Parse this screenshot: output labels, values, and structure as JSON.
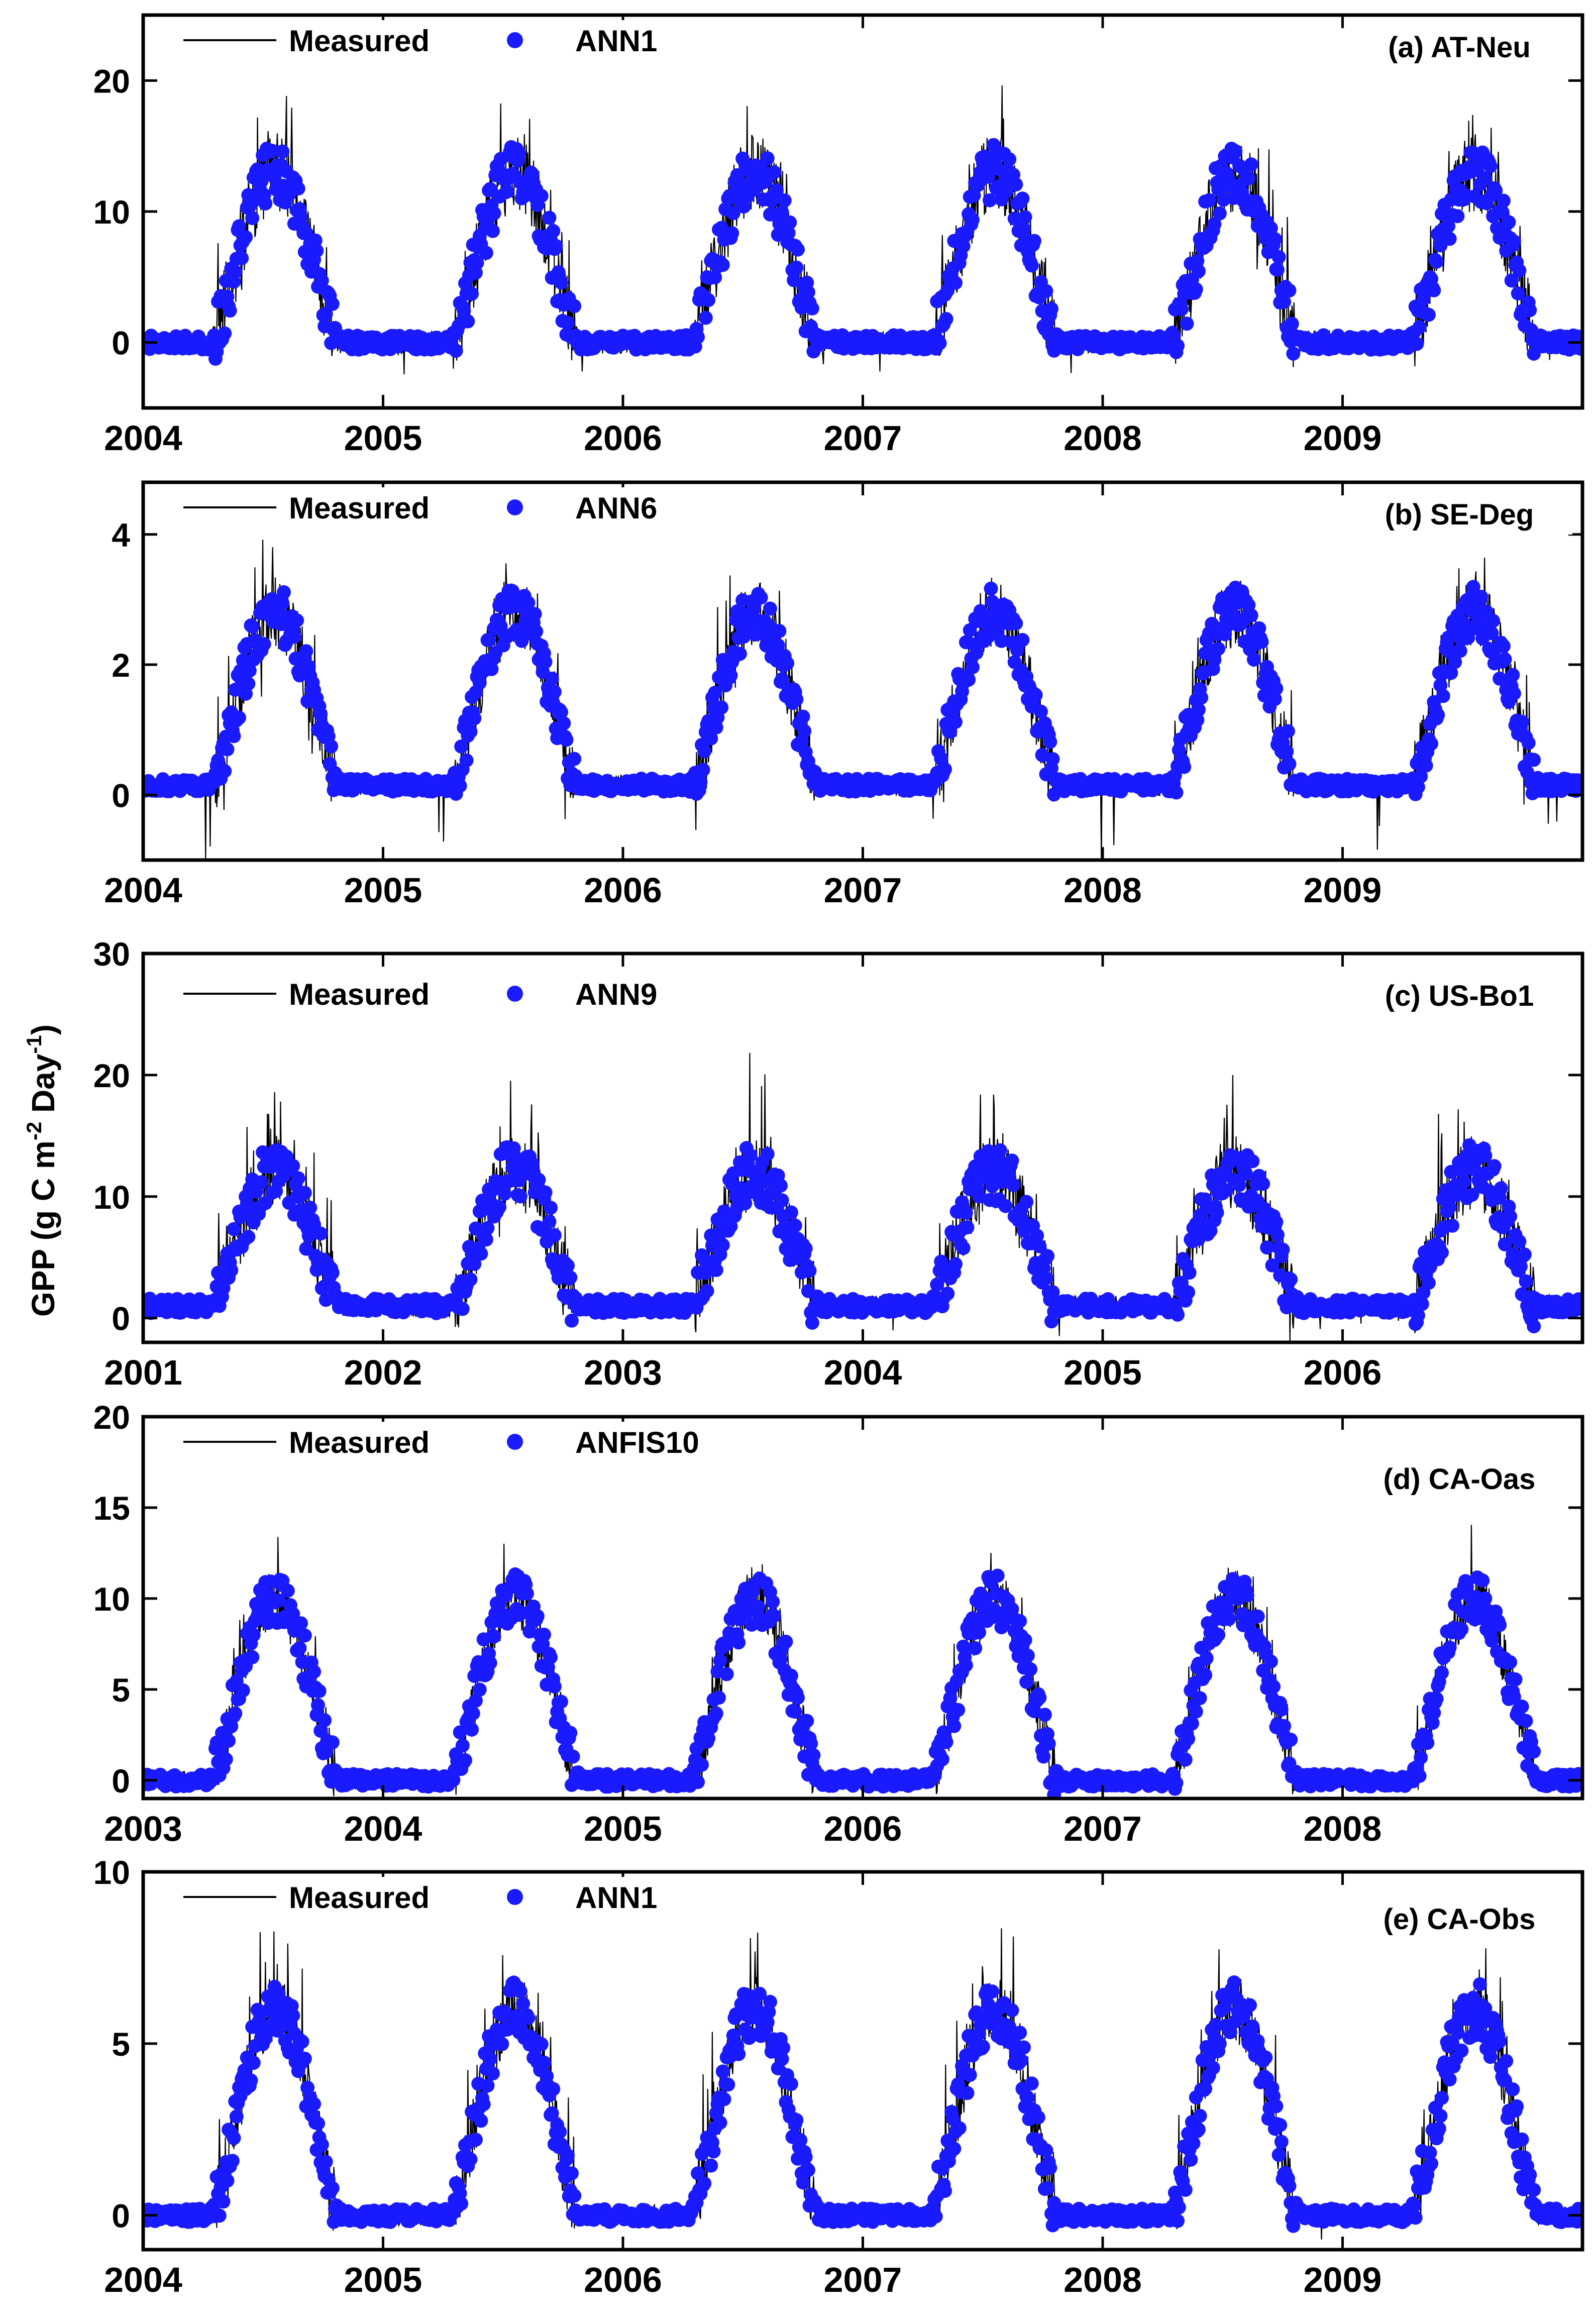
{
  "figure": {
    "ylabel": "GPP (g C m",
    "ylabel_sup1": "-2",
    "ylabel_mid": " Day",
    "ylabel_sup2": "-1",
    "ylabel_end": ")",
    "measured_color": "#000000",
    "model_color": "#1a1aff"
  },
  "chart_data": [
    {
      "type": "line",
      "panel_label": "(a) AT-Neu",
      "series": [
        {
          "name": "Measured",
          "style": "line"
        },
        {
          "name": "ANN1",
          "style": "scatter"
        }
      ],
      "xlim": [
        2004,
        2010
      ],
      "xticks": [
        "2004",
        "2005",
        "2006",
        "2007",
        "2008",
        "2009"
      ],
      "ylim": [
        -5,
        25
      ],
      "yticks": [
        0,
        10,
        20
      ],
      "seasonal": {
        "peak": 13,
        "winter": 0,
        "spike": 6,
        "model_noise": 2.2,
        "measured_noise": 3.0,
        "low": -2.5
      },
      "seed": 11
    },
    {
      "type": "line",
      "panel_label": "(b) SE-Deg",
      "series": [
        {
          "name": "Measured",
          "style": "line"
        },
        {
          "name": "ANN6",
          "style": "scatter"
        }
      ],
      "xlim": [
        2004,
        2010
      ],
      "xticks": [
        "2004",
        "2005",
        "2006",
        "2007",
        "2008",
        "2009"
      ],
      "ylim": [
        -1,
        4.8
      ],
      "yticks": [
        0,
        2,
        4
      ],
      "seasonal": {
        "peak": 2.8,
        "winter": 0.15,
        "spike": 0.9,
        "model_noise": 0.4,
        "measured_noise": 0.55,
        "low": -1.0
      },
      "seed": 23
    },
    {
      "type": "line",
      "panel_label": "(c) US-Bo1",
      "series": [
        {
          "name": "Measured",
          "style": "line"
        },
        {
          "name": "ANN9",
          "style": "scatter"
        }
      ],
      "xlim": [
        2001,
        2007
      ],
      "xticks": [
        "2001",
        "2002",
        "2003",
        "2004",
        "2005",
        "2006"
      ],
      "ylim": [
        -2,
        30
      ],
      "yticks": [
        0,
        10,
        20,
        30
      ],
      "seasonal": {
        "peak": 12,
        "winter": 1,
        "spike": 8,
        "model_noise": 2.4,
        "measured_noise": 3.0,
        "low": -1.5
      },
      "seed": 37
    },
    {
      "type": "line",
      "panel_label": "(d) CA-Oas",
      "series": [
        {
          "name": "Measured",
          "style": "line"
        },
        {
          "name": "ANFIS10",
          "style": "scatter"
        }
      ],
      "xlim": [
        2003,
        2009
      ],
      "xticks": [
        "2003",
        "2004",
        "2005",
        "2006",
        "2007",
        "2008"
      ],
      "ylim": [
        -1,
        20
      ],
      "yticks": [
        0,
        5,
        10,
        15,
        20
      ],
      "seasonal": {
        "peak": 10,
        "winter": 0,
        "spike": 3,
        "model_noise": 1.4,
        "measured_noise": 1.6,
        "low": 0
      },
      "seed": 41
    },
    {
      "type": "line",
      "panel_label": "(e) CA-Obs",
      "series": [
        {
          "name": "Measured",
          "style": "line"
        },
        {
          "name": "ANN1",
          "style": "scatter"
        }
      ],
      "xlim": [
        2004,
        2010
      ],
      "xticks": [
        "2004",
        "2005",
        "2006",
        "2007",
        "2008",
        "2009"
      ],
      "ylim": [
        -1,
        10
      ],
      "yticks": [
        0,
        5,
        10
      ],
      "seasonal": {
        "peak": 6,
        "winter": 0,
        "spike": 2.5,
        "model_noise": 0.8,
        "measured_noise": 1.0,
        "low": -0.5
      },
      "seed": 53
    }
  ]
}
